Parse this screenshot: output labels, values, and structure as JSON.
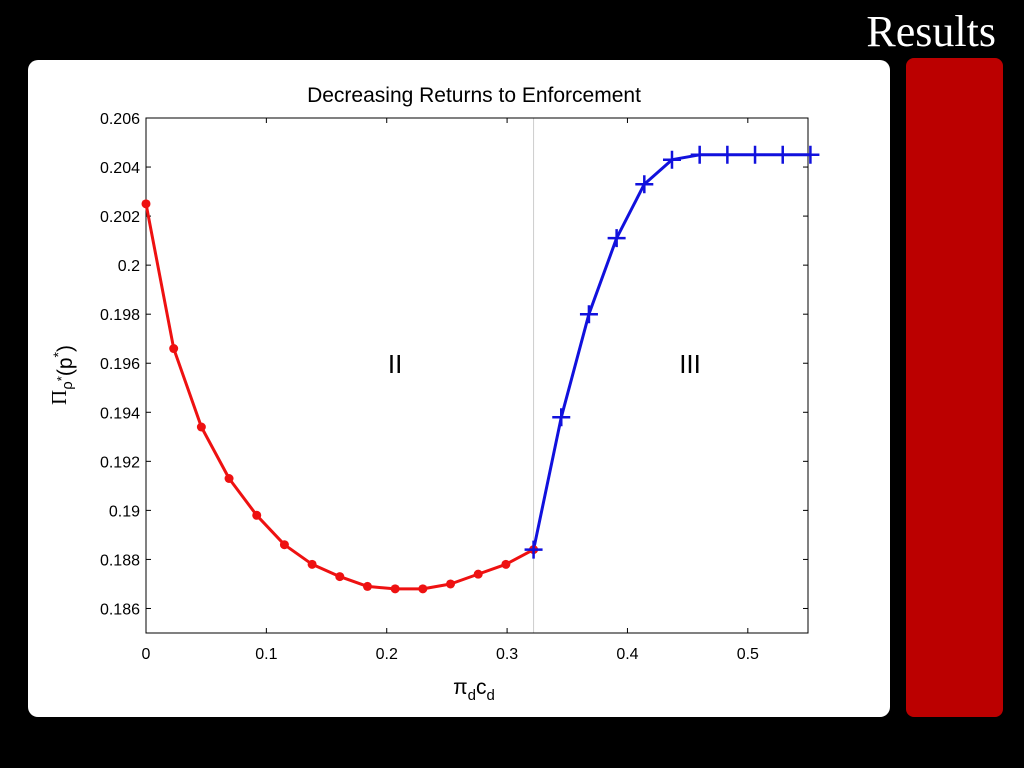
{
  "slide": {
    "title": "Results",
    "accent_color": "#bb0000"
  },
  "chart_data": {
    "type": "line",
    "title": "Decreasing Returns to Enforcement",
    "xlabel": {
      "base": "π",
      "sub1": "d",
      "mid": "c",
      "sub2": "d"
    },
    "ylabel": {
      "base": "Π",
      "sub": "ρ",
      "subsup": "*",
      "tail": "(p",
      "sup": "*",
      "close": ")"
    },
    "xlim": [
      0,
      0.55
    ],
    "ylim": [
      0.185,
      0.206
    ],
    "x_ticks": [
      0,
      0.1,
      0.2,
      0.3,
      0.4,
      0.5
    ],
    "x_tick_labels": [
      "0",
      "0.1",
      "0.2",
      "0.3",
      "0.4",
      "0.5"
    ],
    "y_ticks": [
      0.186,
      0.188,
      0.19,
      0.192,
      0.194,
      0.196,
      0.198,
      0.2,
      0.202,
      0.204,
      0.206
    ],
    "y_tick_labels": [
      "0.186",
      "0.188",
      "0.19",
      "0.192",
      "0.194",
      "0.196",
      "0.198",
      "0.2",
      "0.202",
      "0.204",
      "0.206"
    ],
    "grid": false,
    "divider_x": 0.322,
    "annotations": [
      {
        "text": "II",
        "x": 0.207,
        "y": 0.196
      },
      {
        "text": "III",
        "x": 0.452,
        "y": 0.196
      }
    ],
    "series": [
      {
        "color": "#ee1111",
        "marker": "circle",
        "x": [
          0,
          0.023,
          0.046,
          0.069,
          0.092,
          0.115,
          0.138,
          0.161,
          0.184,
          0.207,
          0.23,
          0.253,
          0.276,
          0.299,
          0.322
        ],
        "y": [
          0.2025,
          0.1966,
          0.1934,
          0.1913,
          0.1898,
          0.1886,
          0.1878,
          0.1873,
          0.1869,
          0.1868,
          0.1868,
          0.187,
          0.1874,
          0.1878,
          0.1884
        ]
      },
      {
        "color": "#1111dd",
        "marker": "plus",
        "x": [
          0.322,
          0.345,
          0.368,
          0.391,
          0.414,
          0.437,
          0.46,
          0.483,
          0.506,
          0.529,
          0.552
        ],
        "y": [
          0.1884,
          0.1938,
          0.198,
          0.2011,
          0.2033,
          0.2043,
          0.2045,
          0.2045,
          0.2045,
          0.2045,
          0.2045
        ]
      }
    ]
  }
}
